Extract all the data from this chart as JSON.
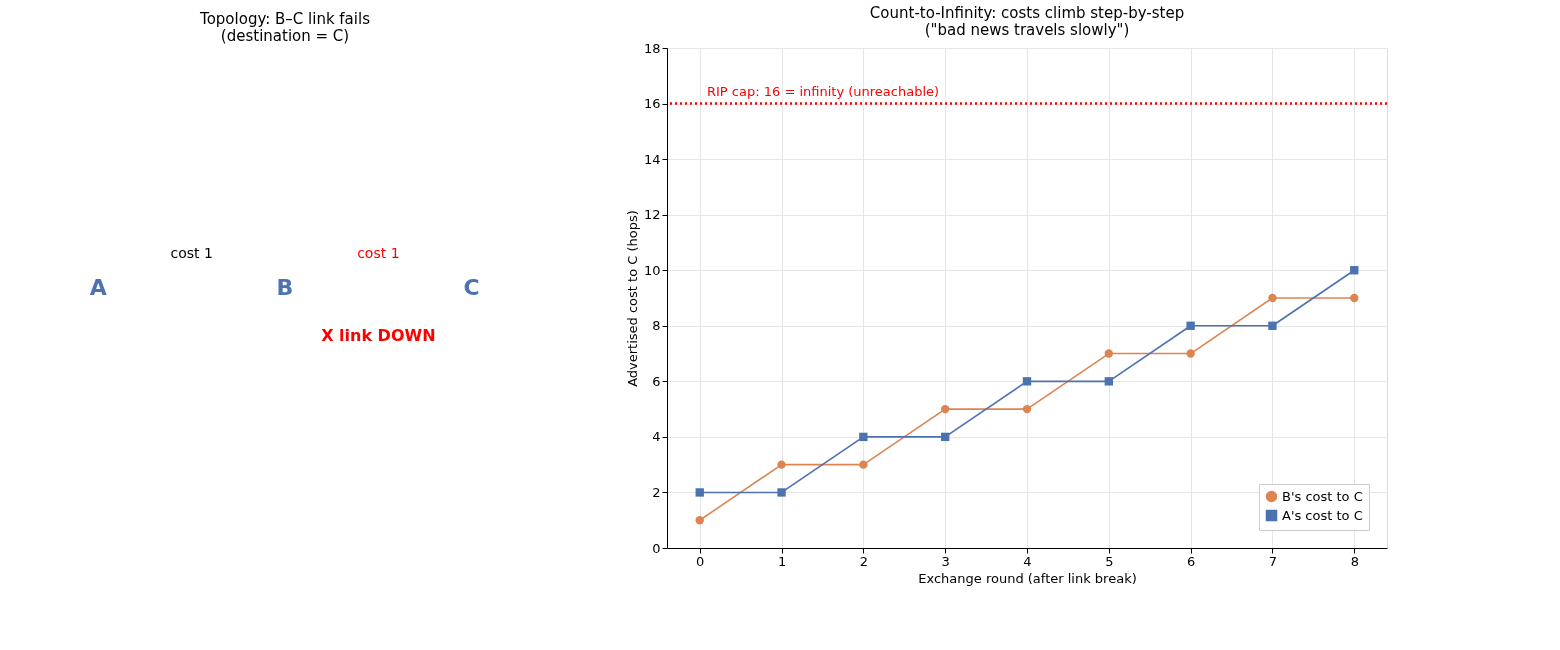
{
  "chart_data": [
    {
      "type": "other",
      "title": "Topology: B–C link fails\n(destination = C)",
      "annotations": [
        "A",
        "B",
        "C",
        "cost 1",
        "cost 1",
        "X  link DOWN"
      ]
    },
    {
      "type": "line",
      "title": "Count-to-Infinity: costs climb step-by-step\n(\"bad news travels slowly\")",
      "xlabel": "Exchange round (after link break)",
      "ylabel": "Advertised cost to C (hops)",
      "x": [
        0,
        1,
        2,
        3,
        4,
        5,
        6,
        7,
        8
      ],
      "series": [
        {
          "name": "B's cost to C",
          "color": "#dd8452",
          "marker": "circle",
          "values": [
            1,
            3,
            3,
            5,
            5,
            7,
            7,
            9,
            9
          ]
        },
        {
          "name": "A's cost to C",
          "color": "#4c72b0",
          "marker": "square",
          "values": [
            2,
            2,
            4,
            4,
            6,
            6,
            8,
            8,
            10
          ]
        }
      ],
      "xlim": [
        -0.4,
        8.4
      ],
      "xticks": [
        0,
        1,
        2,
        3,
        4,
        5,
        6,
        7,
        8
      ],
      "ylim": [
        0,
        18
      ],
      "yticks": [
        0,
        2,
        4,
        6,
        8,
        10,
        12,
        14,
        16,
        18
      ],
      "ref_lines": [
        {
          "axis": "y",
          "value": 16,
          "label": "RIP cap: 16 = infinity (unreachable)",
          "color": "#ff0000",
          "line_style": "dotted"
        }
      ],
      "grid": true,
      "legend": "bottom right",
      "line_style": "solid"
    }
  ]
}
